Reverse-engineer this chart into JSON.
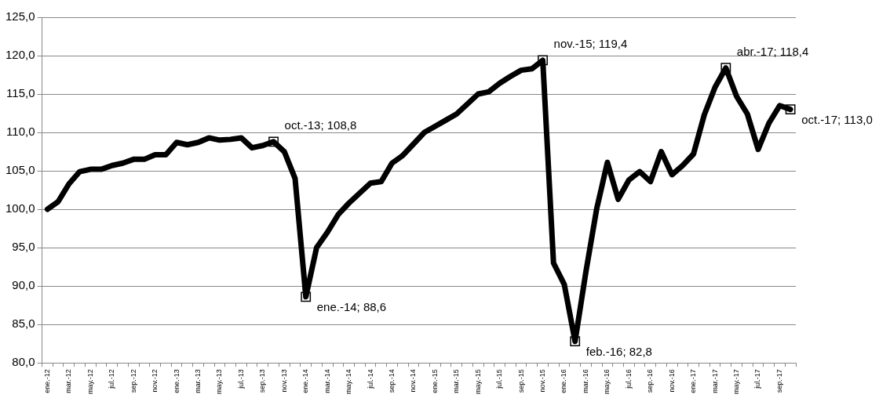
{
  "chart_data": {
    "type": "line",
    "categories": [
      "ene.-12",
      null,
      "mar.-12",
      null,
      "may.-12",
      null,
      "jul.-12",
      null,
      "sep.-12",
      null,
      "nov.-12",
      null,
      "ene.-13",
      null,
      "mar.-13",
      null,
      "may.-13",
      null,
      "jul.-13",
      null,
      "sep.-13",
      null,
      "nov.-13",
      null,
      "ene.-14",
      null,
      "mar.-14",
      null,
      "may.-14",
      null,
      "jul.-14",
      null,
      "sep.-14",
      null,
      "nov.-14",
      null,
      "ene.-15",
      null,
      "mar.-15",
      null,
      "may.-15",
      null,
      "jul.-15",
      null,
      "sep.-15",
      null,
      "nov.-15",
      null,
      "ene.-16",
      null,
      "mar.-16",
      null,
      "may.-16",
      null,
      "jul.-16",
      null,
      "sep.-16",
      null,
      "nov.-16",
      null,
      "ene.-17",
      null,
      "mar.-17",
      null,
      "may.-17",
      null,
      "jul.-17",
      null,
      "sep.-17",
      null
    ],
    "series": [
      {
        "color": "#000000",
        "line_style": "solid",
        "values": [
          100.0,
          101.0,
          103.3,
          104.9,
          105.2,
          105.2,
          105.7,
          106.0,
          106.5,
          106.5,
          107.1,
          107.1,
          108.7,
          108.4,
          108.7,
          109.3,
          109.0,
          109.1,
          109.3,
          108.0,
          108.3,
          108.8,
          107.5,
          104.0,
          88.6,
          95.0,
          97.0,
          99.3,
          100.8,
          102.1,
          103.4,
          103.6,
          106.0,
          107.0,
          108.5,
          110.0,
          110.8,
          111.6,
          112.4,
          113.7,
          115.0,
          115.3,
          116.4,
          117.3,
          118.1,
          118.3,
          119.4,
          93.0,
          90.2,
          82.8,
          91.8,
          100.0,
          106.1,
          101.3,
          103.8,
          104.9,
          103.6,
          107.5,
          104.5,
          105.7,
          107.2,
          112.3,
          115.9,
          118.4,
          114.7,
          112.4,
          107.8,
          111.2,
          113.5,
          113.0
        ]
      },
      {
        "type": "scatter",
        "color": "#000000",
        "marker": "square",
        "values": [
          null,
          null,
          null,
          null,
          null,
          null,
          null,
          null,
          null,
          null,
          null,
          null,
          null,
          null,
          null,
          null,
          null,
          null,
          null,
          null,
          null,
          108.8,
          null,
          null,
          88.6,
          null,
          null,
          null,
          null,
          null,
          null,
          null,
          null,
          null,
          null,
          null,
          null,
          null,
          null,
          null,
          null,
          null,
          null,
          null,
          null,
          null,
          119.4,
          null,
          null,
          82.8,
          null,
          null,
          null,
          null,
          null,
          null,
          null,
          null,
          null,
          null,
          null,
          null,
          null,
          118.4,
          null,
          null,
          null,
          null,
          null,
          113.0
        ],
        "value_labels": [
          null,
          null,
          null,
          null,
          null,
          null,
          null,
          null,
          null,
          null,
          null,
          null,
          null,
          null,
          null,
          null,
          null,
          null,
          null,
          null,
          null,
          "oct.-13; 108,8",
          null,
          null,
          "ene.-14; 88,6",
          null,
          null,
          null,
          null,
          null,
          null,
          null,
          null,
          null,
          null,
          null,
          null,
          null,
          null,
          null,
          null,
          null,
          null,
          null,
          null,
          null,
          "nov.-15; 119,4",
          null,
          null,
          "feb.-16; 82,8",
          null,
          null,
          null,
          null,
          null,
          null,
          null,
          null,
          null,
          null,
          null,
          null,
          null,
          "abr.-17; 118,4",
          null,
          null,
          null,
          null,
          null,
          "oct.-17; 113,0"
        ]
      }
    ],
    "ylim": [
      80,
      125
    ],
    "yticks": [
      {
        "value": 80,
        "label": "80,0"
      },
      {
        "value": 85,
        "label": "85,0"
      },
      {
        "value": 90,
        "label": "90,0"
      },
      {
        "value": 95,
        "label": "95,0"
      },
      {
        "value": 100,
        "label": "100,0"
      },
      {
        "value": 105,
        "label": "105,0"
      },
      {
        "value": 110,
        "label": "110,0"
      },
      {
        "value": 115,
        "label": "115,0"
      },
      {
        "value": 120,
        "label": "120,0"
      },
      {
        "value": 125,
        "label": "125,0"
      }
    ],
    "grid": "y"
  }
}
